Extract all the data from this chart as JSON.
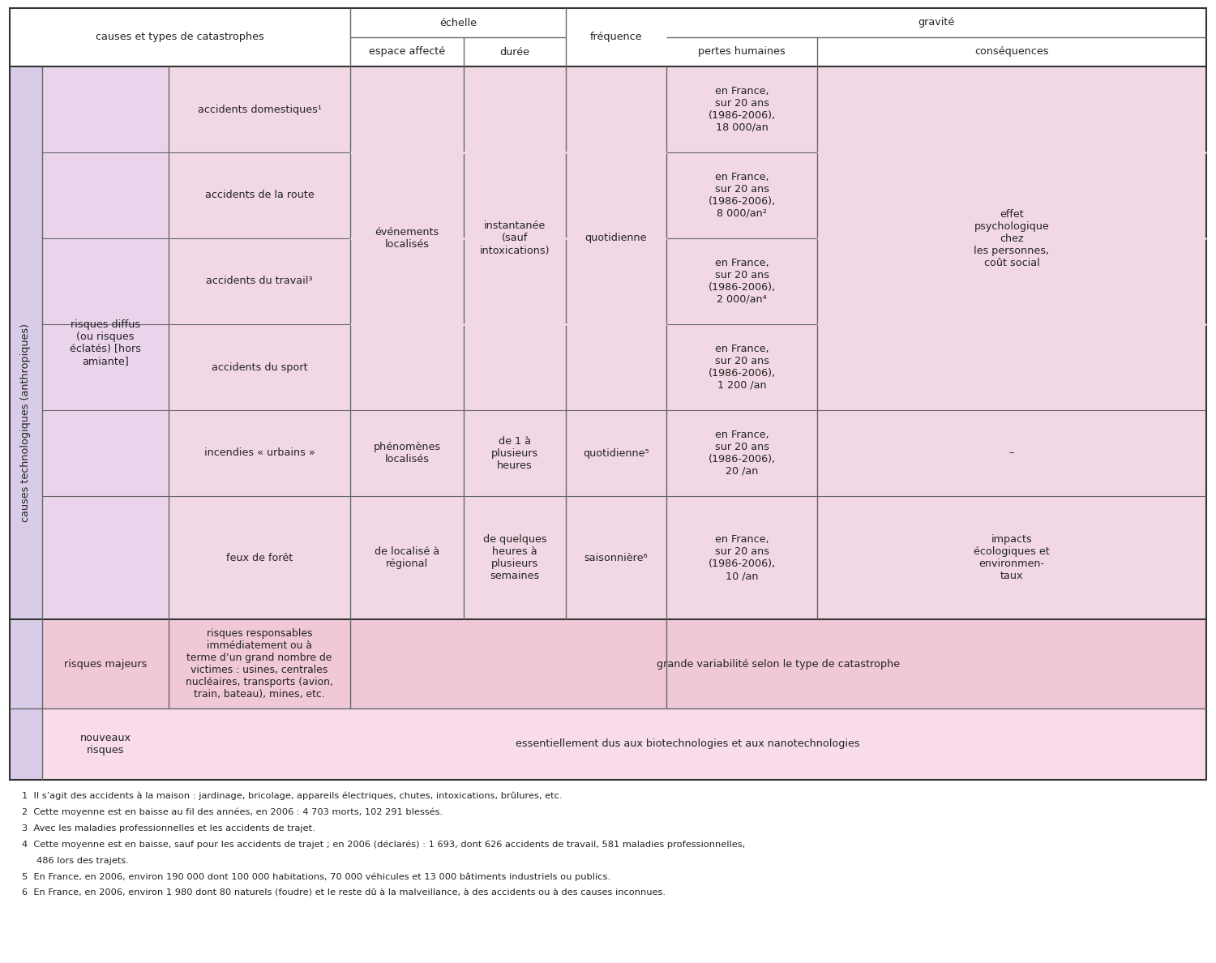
{
  "bg_color": "#ffffff",
  "white": "#ffffff",
  "lavender": "#d8cce8",
  "pink_diffus": "#e8d4e8",
  "pink_light": "#f2d8e4",
  "pink_majeurs": "#f0c8d8",
  "pink_nouveaux": "#f5d8e8",
  "gray_text": "#222222",
  "line_color": "#666666",
  "line_thick": "#333333",
  "footnotes": [
    "1  Il s’agit des accidents à la maison : jardinage, bricolage, appareils électriques, chutes, intoxications, brûlures, etc.",
    "2  Cette moyenne est en baisse au fil des années, en 2006 : 4 703 morts, 102 291 blessés.",
    "3  Avec les maladies professionnelles et les accidents de trajet.",
    "4  Cette moyenne est en baisse, sauf pour les accidents de trajet ; en 2006 (déclarés) : 1 693, dont 626 accidents de travail, 581 maladies professionnelles,",
    "     486 lors des trajets.",
    "5  En France, en 2006, environ 190 000 dont 100 000 habitations, 70 000 véhicules et 13 000 bâtiments industriels ou publics.",
    "6  En France, en 2006, environ 1 980 dont 80 naturels (foudre) et le reste dû à la malveillance, à des accidents ou à des causes inconnues."
  ],
  "C": [
    12,
    52,
    208,
    432,
    572,
    698,
    822,
    1008,
    1488
  ],
  "R": [
    10,
    46,
    82,
    188,
    294,
    400,
    506,
    612,
    764,
    874,
    962,
    1178
  ]
}
